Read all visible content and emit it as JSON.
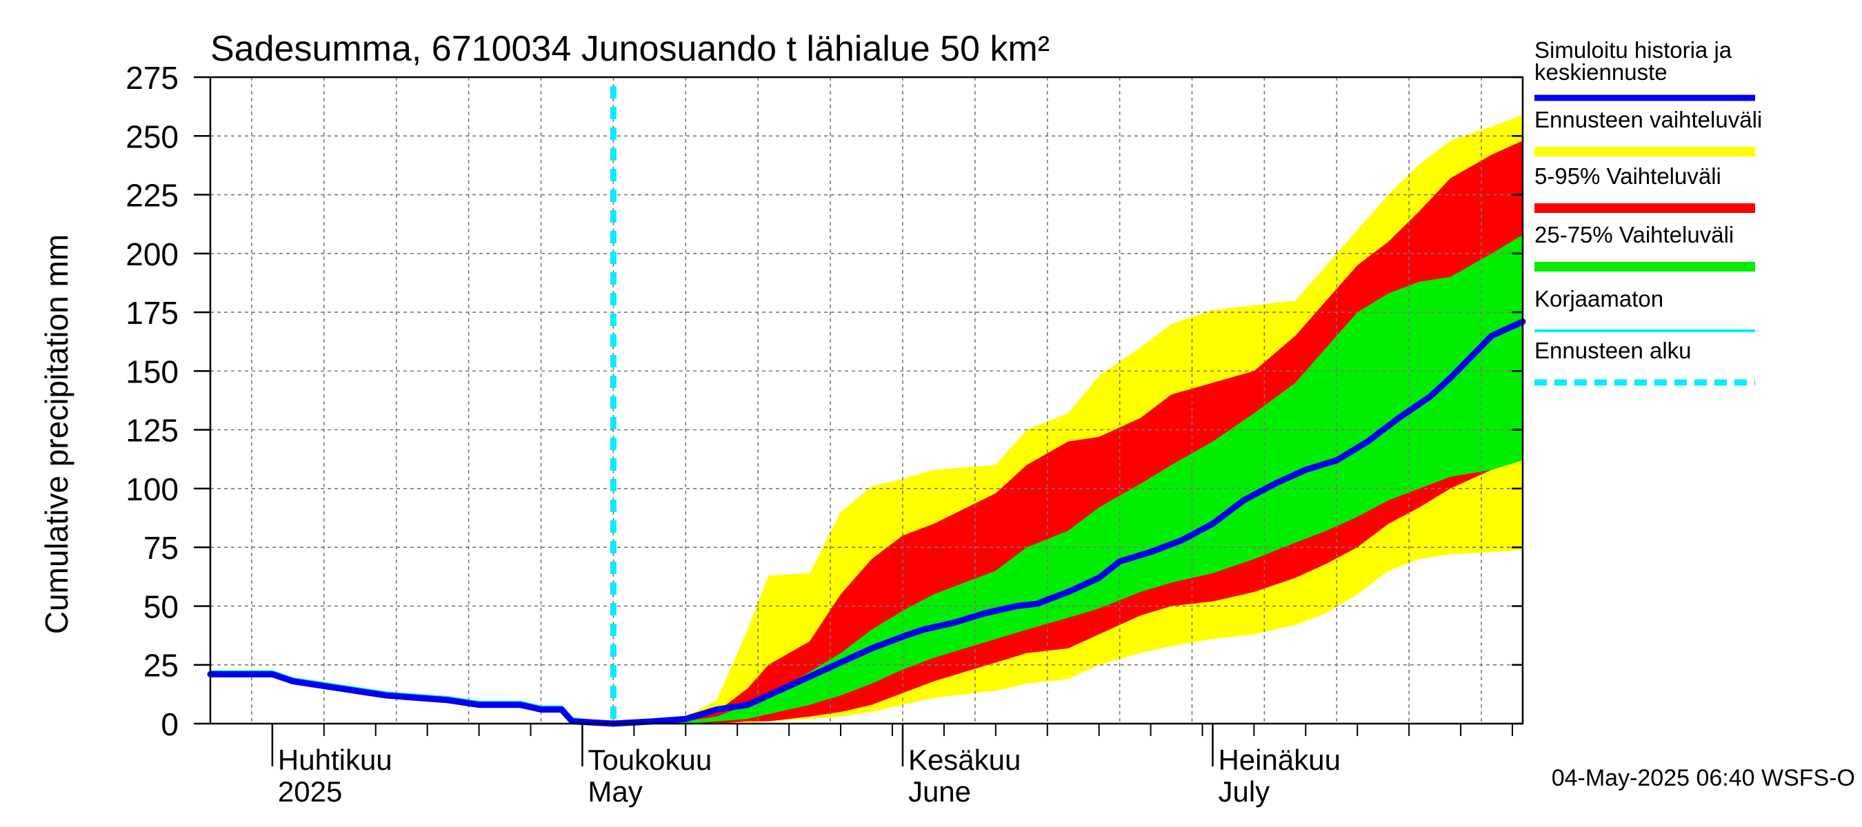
{
  "chart_data": {
    "type": "area",
    "title": "Sadesumma, 6710034 Junosuando t lähialue 50 km²",
    "ylabel": "Cumulative precipitation   mm",
    "ylim": [
      0,
      275
    ],
    "yticks": [
      0,
      25,
      50,
      75,
      100,
      125,
      150,
      175,
      200,
      225,
      250,
      275
    ],
    "x_range": [
      "2025-03-26",
      "2025-07-31"
    ],
    "grid": true,
    "forecast_start": "2025-05-04",
    "month_labels": [
      {
        "date": "2025-04-01",
        "line1": "Huhtikuu",
        "line2": "2025"
      },
      {
        "date": "2025-05-01",
        "line1": "Toukokuu",
        "line2": "May"
      },
      {
        "date": "2025-06-01",
        "line1": "Kesäkuu",
        "line2": "June"
      },
      {
        "date": "2025-07-01",
        "line1": "Heinäkuu",
        "line2": "July"
      }
    ],
    "legend_position": "right",
    "legend": [
      {
        "label": "Simuloitu historia ja keskiennuste",
        "line1": "Simuloitu historia ja",
        "line2": "keskiennuste",
        "color": "#0000ee",
        "style": "solid"
      },
      {
        "label": "Ennusteen vaihteluväli",
        "color": "#ffff00",
        "style": "solid"
      },
      {
        "label": "5-95% Vaihteluväli",
        "color": "#ff0000",
        "style": "solid"
      },
      {
        "label": "25-75% Vaihteluväli",
        "color": "#00ee00",
        "style": "solid"
      },
      {
        "label": "Korjaamaton",
        "color": "#00eeff",
        "style": "thin"
      },
      {
        "label": "Ennusteen alku",
        "color": "#00eeff",
        "style": "dashed"
      }
    ],
    "footer": "04-May-2025 06:40 WSFS-O",
    "series": [
      {
        "name": "Simuloitu historia ja keskiennuste",
        "color": "#0000ee",
        "points": [
          [
            "2025-03-26",
            21
          ],
          [
            "2025-04-01",
            21
          ],
          [
            "2025-04-03",
            18
          ],
          [
            "2025-04-06",
            16
          ],
          [
            "2025-04-09",
            14
          ],
          [
            "2025-04-12",
            12
          ],
          [
            "2025-04-15",
            11
          ],
          [
            "2025-04-18",
            10
          ],
          [
            "2025-04-21",
            8
          ],
          [
            "2025-04-25",
            8
          ],
          [
            "2025-04-27",
            6
          ],
          [
            "2025-04-29",
            6
          ],
          [
            "2025-04-30",
            1
          ],
          [
            "2025-05-04",
            0
          ],
          [
            "2025-05-08",
            1
          ],
          [
            "2025-05-11",
            2
          ],
          [
            "2025-05-14",
            6
          ],
          [
            "2025-05-17",
            8
          ],
          [
            "2025-05-20",
            14
          ],
          [
            "2025-05-22",
            18
          ],
          [
            "2025-05-24",
            22
          ],
          [
            "2025-05-26",
            26
          ],
          [
            "2025-05-29",
            32
          ],
          [
            "2025-06-01",
            37
          ],
          [
            "2025-06-03",
            40
          ],
          [
            "2025-06-06",
            43
          ],
          [
            "2025-06-09",
            47
          ],
          [
            "2025-06-12",
            50
          ],
          [
            "2025-06-14",
            51
          ],
          [
            "2025-06-17",
            56
          ],
          [
            "2025-06-20",
            62
          ],
          [
            "2025-06-22",
            69
          ],
          [
            "2025-06-25",
            73
          ],
          [
            "2025-06-28",
            78
          ],
          [
            "2025-07-01",
            85
          ],
          [
            "2025-07-04",
            95
          ],
          [
            "2025-07-07",
            102
          ],
          [
            "2025-07-10",
            108
          ],
          [
            "2025-07-13",
            112
          ],
          [
            "2025-07-16",
            120
          ],
          [
            "2025-07-19",
            130
          ],
          [
            "2025-07-22",
            139
          ],
          [
            "2025-07-24",
            147
          ],
          [
            "2025-07-26",
            156
          ],
          [
            "2025-07-28",
            165
          ],
          [
            "2025-07-31",
            171
          ]
        ]
      },
      {
        "name": "Korjaamaton",
        "color": "#00eeff",
        "points": [
          [
            "2025-03-26",
            22
          ],
          [
            "2025-04-01",
            22
          ],
          [
            "2025-04-03",
            19
          ],
          [
            "2025-04-06",
            17
          ],
          [
            "2025-04-09",
            15
          ],
          [
            "2025-04-12",
            13
          ],
          [
            "2025-04-15",
            12
          ],
          [
            "2025-04-18",
            11
          ],
          [
            "2025-04-21",
            9
          ],
          [
            "2025-04-25",
            9
          ],
          [
            "2025-04-27",
            7
          ],
          [
            "2025-04-29",
            7
          ],
          [
            "2025-04-30",
            2
          ],
          [
            "2025-05-04",
            0
          ]
        ]
      }
    ],
    "bands": [
      {
        "name": "Ennusteen vaihteluväli",
        "color": "#ffff00",
        "points": [
          [
            "2025-05-04",
            0,
            0
          ],
          [
            "2025-05-08",
            0,
            1
          ],
          [
            "2025-05-11",
            0,
            3
          ],
          [
            "2025-05-14",
            0,
            10
          ],
          [
            "2025-05-17",
            0,
            40
          ],
          [
            "2025-05-19",
            1,
            63
          ],
          [
            "2025-05-23",
            2,
            64
          ],
          [
            "2025-05-26",
            3,
            90
          ],
          [
            "2025-05-29",
            5,
            101
          ],
          [
            "2025-06-01",
            8,
            104
          ],
          [
            "2025-06-04",
            11,
            108
          ],
          [
            "2025-06-10",
            14,
            110
          ],
          [
            "2025-06-13",
            17,
            125
          ],
          [
            "2025-06-17",
            19,
            132
          ],
          [
            "2025-06-20",
            25,
            148
          ],
          [
            "2025-06-24",
            30,
            160
          ],
          [
            "2025-06-27",
            33,
            170
          ],
          [
            "2025-07-01",
            36,
            176
          ],
          [
            "2025-07-05",
            38,
            178
          ],
          [
            "2025-07-09",
            42,
            180
          ],
          [
            "2025-07-12",
            47,
            195
          ],
          [
            "2025-07-15",
            55,
            210
          ],
          [
            "2025-07-18",
            65,
            225
          ],
          [
            "2025-07-21",
            70,
            238
          ],
          [
            "2025-07-24",
            72,
            248
          ],
          [
            "2025-07-28",
            73,
            254
          ],
          [
            "2025-07-31",
            74,
            259
          ]
        ]
      },
      {
        "name": "5-95% Vaihteluväli",
        "color": "#ff0000",
        "points": [
          [
            "2025-05-04",
            0,
            0
          ],
          [
            "2025-05-08",
            0,
            1
          ],
          [
            "2025-05-11",
            0,
            2
          ],
          [
            "2025-05-14",
            0,
            5
          ],
          [
            "2025-05-17",
            1,
            15
          ],
          [
            "2025-05-19",
            1,
            25
          ],
          [
            "2025-05-23",
            3,
            35
          ],
          [
            "2025-05-26",
            5,
            55
          ],
          [
            "2025-05-29",
            8,
            70
          ],
          [
            "2025-06-01",
            13,
            80
          ],
          [
            "2025-06-04",
            18,
            85
          ],
          [
            "2025-06-10",
            26,
            98
          ],
          [
            "2025-06-13",
            30,
            110
          ],
          [
            "2025-06-17",
            32,
            120
          ],
          [
            "2025-06-20",
            38,
            122
          ],
          [
            "2025-06-24",
            46,
            130
          ],
          [
            "2025-06-27",
            50,
            140
          ],
          [
            "2025-07-01",
            52,
            145
          ],
          [
            "2025-07-05",
            56,
            150
          ],
          [
            "2025-07-09",
            62,
            165
          ],
          [
            "2025-07-12",
            68,
            180
          ],
          [
            "2025-07-15",
            75,
            195
          ],
          [
            "2025-07-18",
            85,
            205
          ],
          [
            "2025-07-21",
            92,
            218
          ],
          [
            "2025-07-24",
            100,
            232
          ],
          [
            "2025-07-28",
            108,
            242
          ],
          [
            "2025-07-31",
            123,
            248
          ]
        ]
      },
      {
        "name": "25-75% Vaihteluväli",
        "color": "#00ee00",
        "points": [
          [
            "2025-05-04",
            0,
            0
          ],
          [
            "2025-05-08",
            0,
            0
          ],
          [
            "2025-05-11",
            0,
            1
          ],
          [
            "2025-05-14",
            1,
            3
          ],
          [
            "2025-05-17",
            2,
            8
          ],
          [
            "2025-05-19",
            4,
            12
          ],
          [
            "2025-05-23",
            8,
            22
          ],
          [
            "2025-05-26",
            12,
            30
          ],
          [
            "2025-05-29",
            17,
            40
          ],
          [
            "2025-06-01",
            23,
            48
          ],
          [
            "2025-06-04",
            28,
            55
          ],
          [
            "2025-06-10",
            36,
            65
          ],
          [
            "2025-06-13",
            40,
            75
          ],
          [
            "2025-06-17",
            45,
            82
          ],
          [
            "2025-06-20",
            49,
            92
          ],
          [
            "2025-06-24",
            56,
            102
          ],
          [
            "2025-06-27",
            60,
            110
          ],
          [
            "2025-07-01",
            64,
            120
          ],
          [
            "2025-07-05",
            70,
            132
          ],
          [
            "2025-07-09",
            77,
            145
          ],
          [
            "2025-07-12",
            82,
            160
          ],
          [
            "2025-07-15",
            88,
            175
          ],
          [
            "2025-07-18",
            95,
            183
          ],
          [
            "2025-07-21",
            100,
            188
          ],
          [
            "2025-07-24",
            105,
            190
          ],
          [
            "2025-07-28",
            108,
            200
          ],
          [
            "2025-07-31",
            112,
            208
          ]
        ]
      }
    ]
  }
}
